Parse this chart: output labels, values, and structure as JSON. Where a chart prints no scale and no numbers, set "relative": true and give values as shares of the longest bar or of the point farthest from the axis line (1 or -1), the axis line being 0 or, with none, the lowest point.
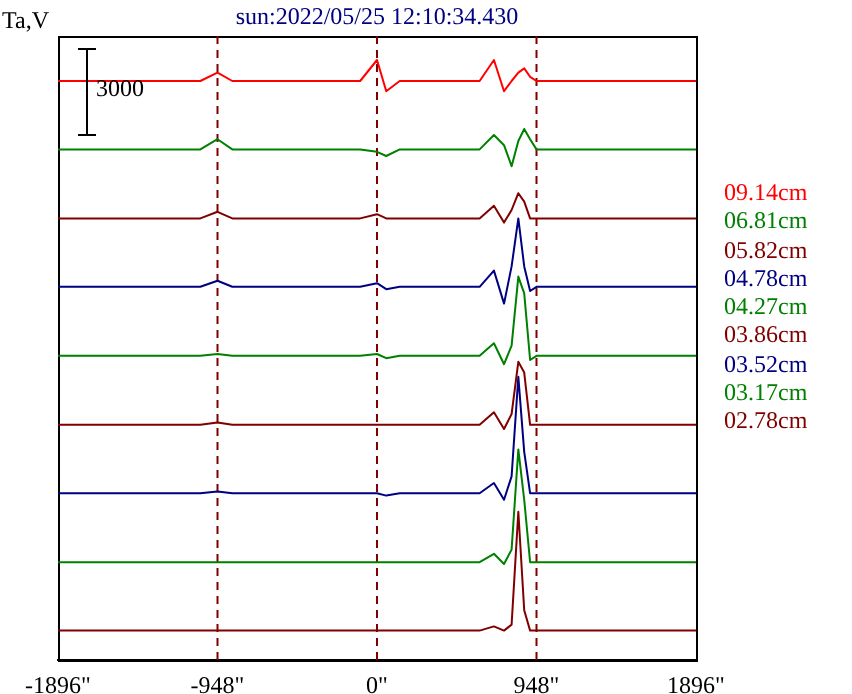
{
  "chart_data": {
    "type": "line",
    "title": "sun:2022/05/25 12:10:34.430",
    "ylabel": "Ta,V",
    "relative": true,
    "legend": "right",
    "marker": "none",
    "line_style": "solid",
    "grid": false,
    "annotations": [
      "3000"
    ],
    "x": [
      -1896,
      -1050,
      -948,
      -860,
      -460,
      -100,
      0,
      55,
      135,
      610,
      695,
      755,
      800,
      840,
      875,
      910,
      948,
      1210,
      1896
    ],
    "xlim": [
      -1896,
      1896
    ],
    "xticks": [
      {
        "value": -1896,
        "label": "-1896\""
      },
      {
        "value": -948,
        "label": "-948\""
      },
      {
        "value": 0,
        "label": "0\""
      },
      {
        "value": 948,
        "label": "948\""
      },
      {
        "value": 1896,
        "label": "1896\""
      }
    ],
    "ref_lines": [
      {
        "axis": "x",
        "value": -948,
        "color": "#800000",
        "line_style": "dashed"
      },
      {
        "axis": "x",
        "value": 0,
        "color": "#800000",
        "line_style": "dashed"
      },
      {
        "axis": "x",
        "value": 948,
        "color": "#800000",
        "line_style": "dashed"
      }
    ],
    "series": [
      {
        "name": "09.14cm",
        "color": "#ff0000",
        "values": [
          0.965,
          0.965,
          0.979,
          0.965,
          0.965,
          0.965,
          1,
          0.948,
          0.965,
          0.965,
          1,
          0.948,
          0.965,
          0.979,
          0.986,
          0.972,
          0.965,
          0.965,
          0.965
        ]
      },
      {
        "name": "06.81cm",
        "color": "#008000",
        "values": [
          0.851,
          0.851,
          0.868,
          0.851,
          0.851,
          0.851,
          0.847,
          0.84,
          0.851,
          0.851,
          0.875,
          0.858,
          0.823,
          0.865,
          0.885,
          0.868,
          0.851,
          0.851,
          0.851
        ]
      },
      {
        "name": "05.82cm",
        "color": "#800000",
        "values": [
          0.736,
          0.736,
          0.747,
          0.736,
          0.736,
          0.736,
          0.743,
          0.736,
          0.736,
          0.736,
          0.757,
          0.729,
          0.75,
          0.778,
          0.764,
          0.736,
          0.736,
          0.736,
          0.736
        ]
      },
      {
        "name": "04.78cm",
        "color": "#000080",
        "values": [
          0.622,
          0.622,
          0.632,
          0.622,
          0.622,
          0.622,
          0.628,
          0.618,
          0.622,
          0.622,
          0.649,
          0.594,
          0.656,
          0.736,
          0.656,
          0.615,
          0.622,
          0.622,
          0.622
        ]
      },
      {
        "name": "04.27cm",
        "color": "#008000",
        "values": [
          0.507,
          0.507,
          0.51,
          0.507,
          0.507,
          0.507,
          0.51,
          0.503,
          0.507,
          0.507,
          0.528,
          0.493,
          0.524,
          0.639,
          0.611,
          0.5,
          0.507,
          0.507,
          0.507
        ]
      },
      {
        "name": "03.86cm",
        "color": "#800000",
        "values": [
          0.392,
          0.392,
          0.396,
          0.392,
          0.392,
          0.392,
          0.392,
          0.392,
          0.392,
          0.392,
          0.413,
          0.385,
          0.41,
          0.497,
          0.479,
          0.392,
          0.392,
          0.392,
          0.392
        ]
      },
      {
        "name": "03.52cm",
        "color": "#000080",
        "values": [
          0.278,
          0.278,
          0.281,
          0.278,
          0.278,
          0.278,
          0.278,
          0.274,
          0.278,
          0.278,
          0.295,
          0.267,
          0.306,
          0.472,
          0.347,
          0.278,
          0.278,
          0.278,
          0.278
        ]
      },
      {
        "name": "03.17cm",
        "color": "#008000",
        "values": [
          0.163,
          0.163,
          0.163,
          0.163,
          0.163,
          0.163,
          0.163,
          0.163,
          0.163,
          0.163,
          0.177,
          0.16,
          0.184,
          0.351,
          0.267,
          0.163,
          0.163,
          0.163,
          0.163
        ]
      },
      {
        "name": "02.78cm",
        "color": "#800000",
        "values": [
          0.049,
          0.049,
          0.049,
          0.049,
          0.049,
          0.049,
          0.049,
          0.049,
          0.049,
          0.049,
          0.056,
          0.049,
          0.059,
          0.247,
          0.083,
          0.049,
          0.049,
          0.049,
          0.049
        ]
      }
    ]
  }
}
